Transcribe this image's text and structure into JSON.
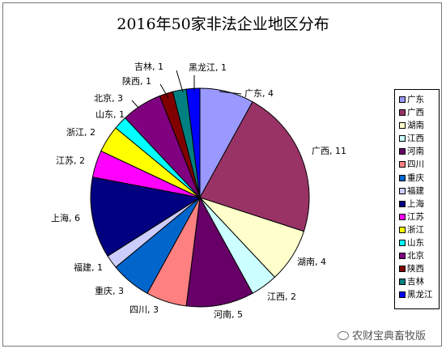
{
  "chart_data": {
    "type": "pie",
    "title": "2016年50家非法企业地区分布",
    "legend_position": "right",
    "slices": [
      {
        "label": "广东",
        "value": 4,
        "color": "#9999ff",
        "text": "广东, 4"
      },
      {
        "label": "广西",
        "value": 11,
        "color": "#993366",
        "text": "广西, 11"
      },
      {
        "label": "湖南",
        "value": 4,
        "color": "#ffffcc",
        "text": "湖南, 4"
      },
      {
        "label": "江西",
        "value": 2,
        "color": "#ccffff",
        "text": "江西, 2"
      },
      {
        "label": "河南",
        "value": 5,
        "color": "#660066",
        "text": "河南, 5"
      },
      {
        "label": "四川",
        "value": 3,
        "color": "#ff8080",
        "text": "四川, 3"
      },
      {
        "label": "重庆",
        "value": 3,
        "color": "#0066cc",
        "text": "重庆, 3"
      },
      {
        "label": "福建",
        "value": 1,
        "color": "#ccccff",
        "text": "福建, 1"
      },
      {
        "label": "上海",
        "value": 6,
        "color": "#000080",
        "text": "上海, 6"
      },
      {
        "label": "江苏",
        "value": 2,
        "color": "#ff00ff",
        "text": "江苏, 2"
      },
      {
        "label": "浙江",
        "value": 2,
        "color": "#ffff00",
        "text": "浙江, 2"
      },
      {
        "label": "山东",
        "value": 1,
        "color": "#00ffff",
        "text": "山东, 1"
      },
      {
        "label": "北京",
        "value": 3,
        "color": "#800080",
        "text": "北京, 3"
      },
      {
        "label": "陕西",
        "value": 1,
        "color": "#800000",
        "text": "陕西, 1"
      },
      {
        "label": "吉林",
        "value": 1,
        "color": "#008080",
        "text": "吉林, 1"
      },
      {
        "label": "黑龙江",
        "value": 1,
        "color": "#0000ff",
        "text": "黑龙江, 1"
      }
    ]
  },
  "watermark": "农财宝典畜牧版"
}
